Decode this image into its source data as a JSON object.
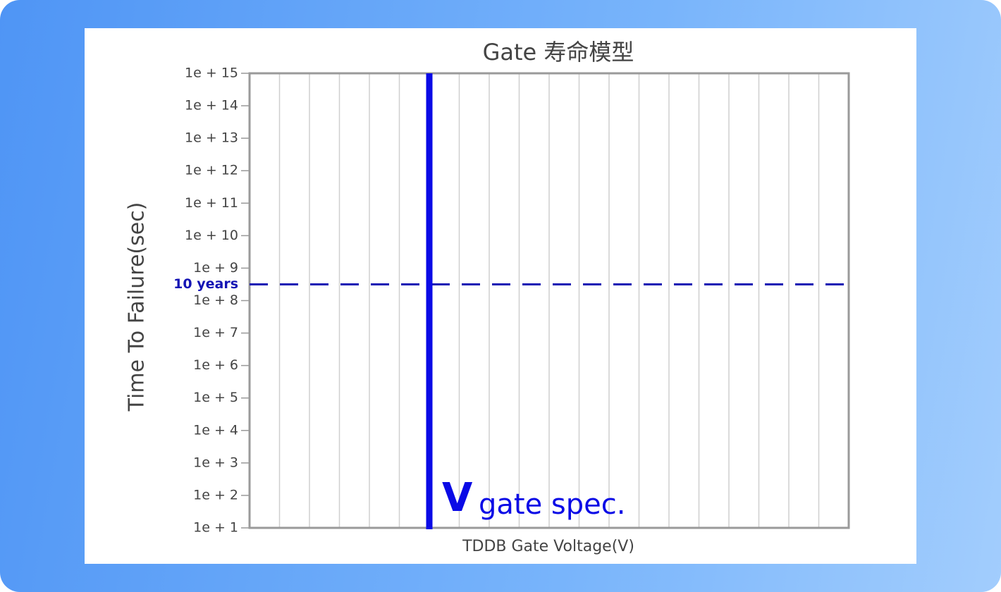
{
  "chart_data": {
    "type": "reference",
    "title": "Gate 寿命模型",
    "xlabel": "TDDB Gate Voltage(V)",
    "ylabel": "Time To Failure(sec)",
    "ylog": true,
    "ylim": [
      10,
      1000000000000000.0
    ],
    "yticks": [
      {
        "value": 1000000000000000.0,
        "label": "1e + 15"
      },
      {
        "value": 100000000000000.0,
        "label": "1e + 14"
      },
      {
        "value": 10000000000000.0,
        "label": "1e + 13"
      },
      {
        "value": 1000000000000.0,
        "label": "1e + 12"
      },
      {
        "value": 100000000000.0,
        "label": "1e + 11"
      },
      {
        "value": 10000000000.0,
        "label": "1e + 10"
      },
      {
        "value": 1000000000.0,
        "label": "1e + 9"
      },
      {
        "value": 100000000.0,
        "label": "1e + 8"
      },
      {
        "value": 10000000.0,
        "label": "1e + 7"
      },
      {
        "value": 1000000.0,
        "label": "1e + 6"
      },
      {
        "value": 100000.0,
        "label": "1e + 5"
      },
      {
        "value": 10000.0,
        "label": "1e + 4"
      },
      {
        "value": 1000.0,
        "label": "1e + 3"
      },
      {
        "value": 100,
        "label": "1e + 2"
      },
      {
        "value": 10,
        "label": "1e + 1"
      }
    ],
    "xlim": [
      0,
      20
    ],
    "xgrid": [
      1,
      2,
      3,
      4,
      5,
      6,
      7,
      8,
      9,
      10,
      11,
      12,
      13,
      14,
      15,
      16,
      17,
      18,
      19
    ],
    "grid": true,
    "spec_line": {
      "x": 6,
      "label": "V",
      "sublabel": "gate spec.",
      "color": "#0a0ae6"
    },
    "reference_line": {
      "y": 315360000,
      "label": "10 years",
      "color": "#1414b4"
    }
  }
}
